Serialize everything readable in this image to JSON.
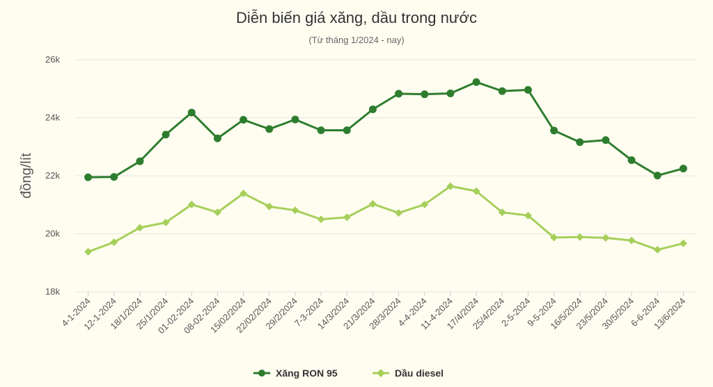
{
  "chart_data": {
    "type": "line",
    "title": "Diễn biến giá xăng, dầu trong nước",
    "subtitle": "(Từ tháng 1/2024 - nay)",
    "xlabel": "",
    "ylabel": "đồng/lít",
    "ylim": [
      18000,
      26000
    ],
    "yticks": [
      18000,
      20000,
      22000,
      24000,
      26000
    ],
    "ytick_labels": [
      "18k",
      "20k",
      "22k",
      "24k",
      "26k"
    ],
    "grid": true,
    "legend_position": "bottom-center",
    "categories": [
      "4-1-2024",
      "12-1-2024",
      "18/1/2024",
      "25/1/2024",
      "01-02-2024",
      "08-02-2024",
      "15/02/2024",
      "22/02/2024",
      "29/2/2024",
      "7-3-2024",
      "14/3/2024",
      "21/3/2024",
      "28/3/2024",
      "4-4-2024",
      "11-4-2024",
      "17/4/2024",
      "25/4/2024",
      "2-5-2024",
      "9-5-2024",
      "16/5/2024",
      "23/5/2024",
      "30/5/2024",
      "6-6-2024",
      "13/6/2024"
    ],
    "series": [
      {
        "name": "Xăng RON 95",
        "color": "#2e7d2e",
        "marker": "circle",
        "values": [
          21950,
          21960,
          22500,
          23420,
          24180,
          23290,
          23930,
          23610,
          23940,
          23570,
          23570,
          24290,
          24830,
          24810,
          24840,
          25230,
          24920,
          24960,
          23560,
          23160,
          23230,
          22540,
          22010,
          22250
        ]
      },
      {
        "name": "Dầu diesel",
        "color": "#a6cf5a",
        "marker": "diamond",
        "values": [
          19380,
          19710,
          20210,
          20390,
          21010,
          20740,
          21390,
          20940,
          20810,
          20500,
          20570,
          21030,
          20720,
          21010,
          21640,
          21470,
          20740,
          20630,
          19870,
          19890,
          19860,
          19770,
          19450,
          19670
        ]
      }
    ]
  }
}
